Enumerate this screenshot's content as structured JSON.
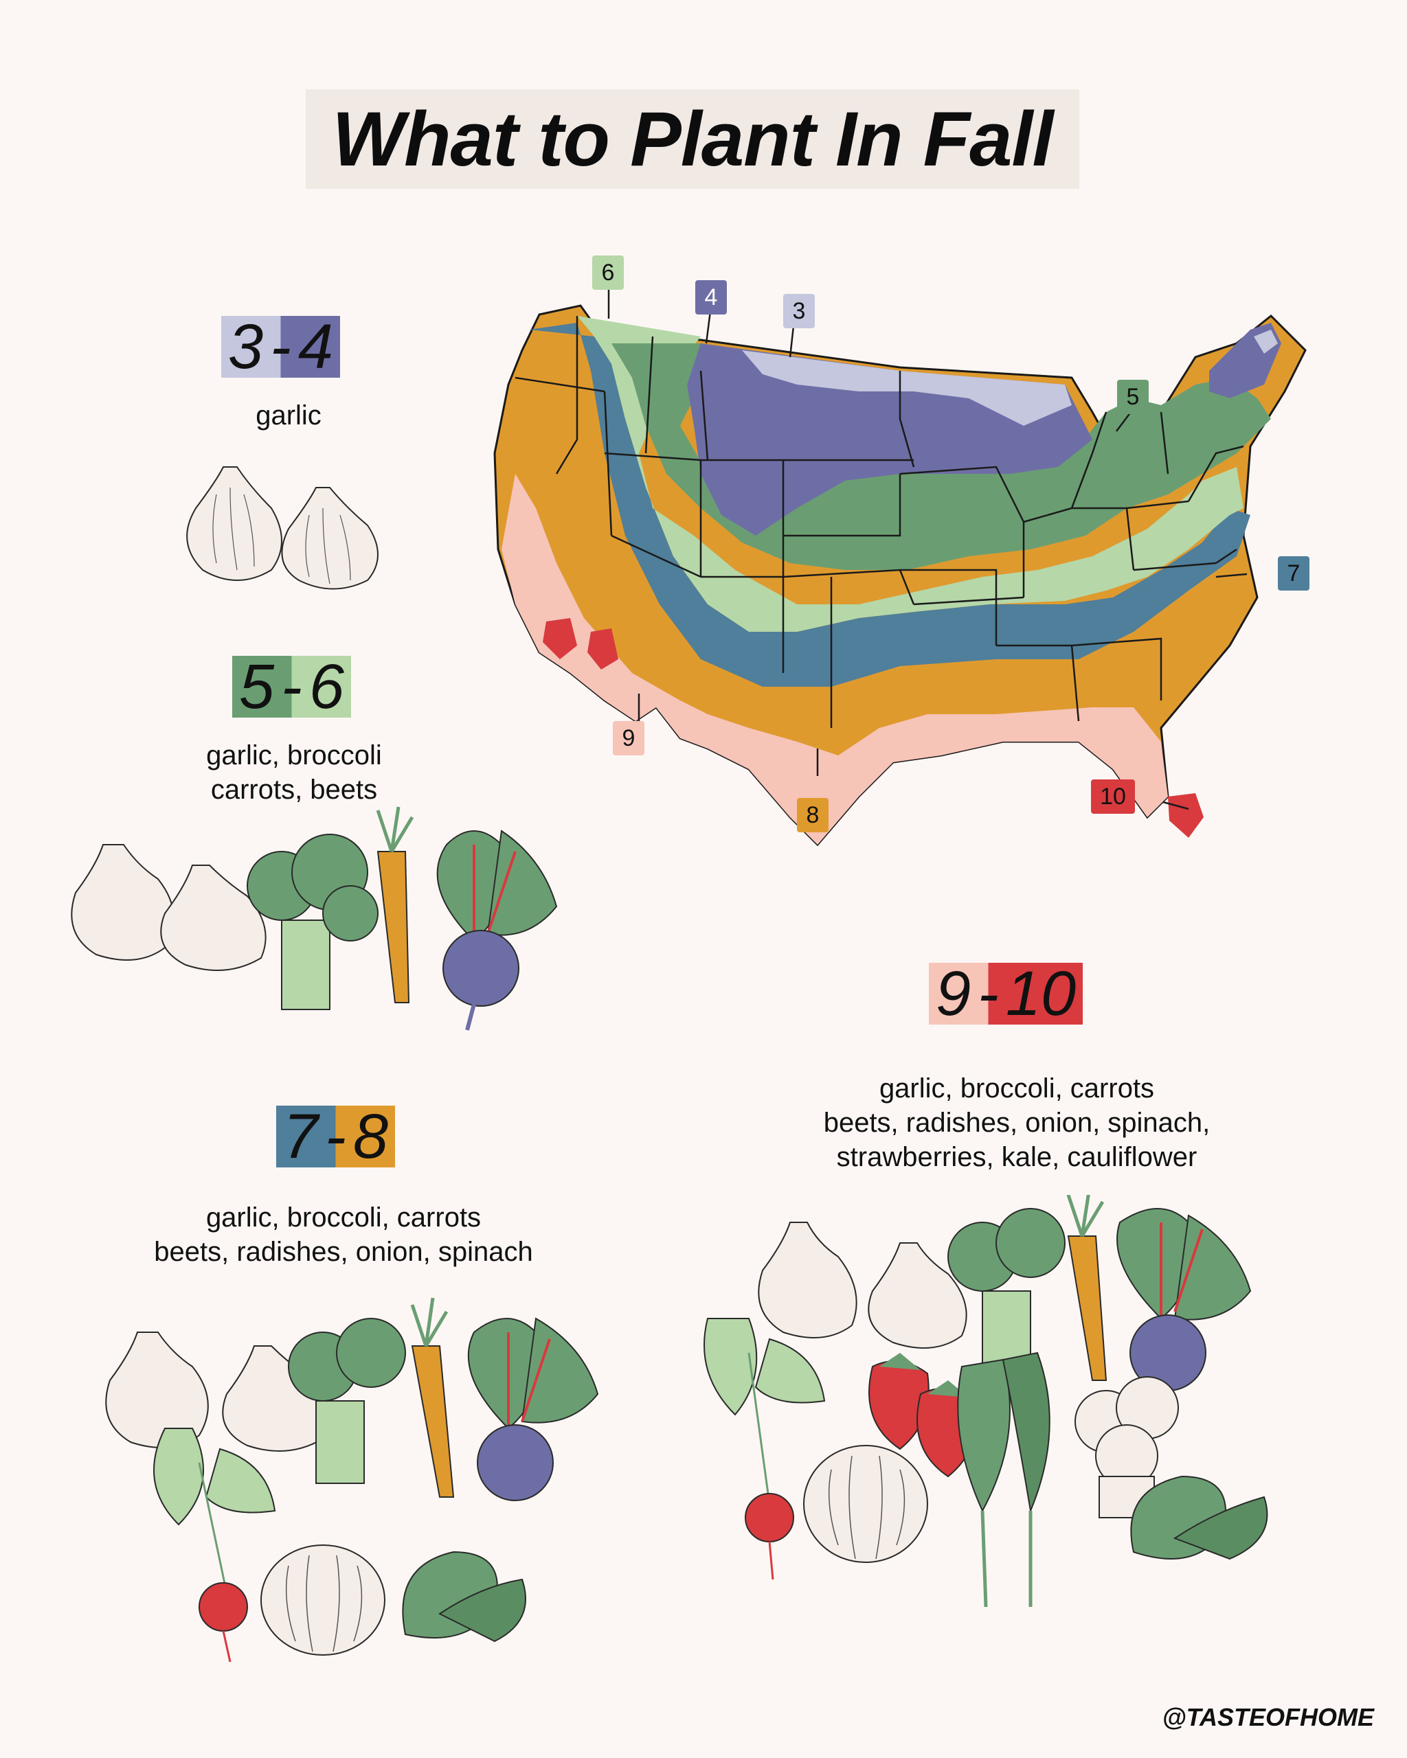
{
  "title": "What to Plant In Fall",
  "colors": {
    "background": "#fcf7f4",
    "zone3": "#c4c7de",
    "zone4": "#6e6ea6",
    "zone5": "#6a9e72",
    "zone6": "#b6d7a8",
    "zone7": "#4f7f9a",
    "zone8": "#df9a2e",
    "zone9": "#f7c4b8",
    "zone10": "#d83a3e"
  },
  "groups": [
    {
      "zone_a": "3",
      "zone_b": "4",
      "sep": "-",
      "plants": [
        "garlic"
      ]
    },
    {
      "zone_a": "5",
      "zone_b": "6",
      "sep": "-",
      "plants": [
        "garlic, broccoli",
        "carrots, beets"
      ]
    },
    {
      "zone_a": "7",
      "zone_b": "8",
      "sep": "-",
      "plants": [
        "garlic, broccoli, carrots",
        "beets, radishes, onion, spinach"
      ]
    },
    {
      "zone_a": "9",
      "zone_b": "10",
      "sep": "-",
      "plants": [
        "garlic, broccoli, carrots",
        "beets, radishes, onion, spinach,",
        "strawberries, kale, cauliflower"
      ]
    }
  ],
  "map_labels": [
    "6",
    "4",
    "3",
    "5",
    "7",
    "9",
    "8",
    "10"
  ],
  "credit": "@TASTEOFHOME"
}
